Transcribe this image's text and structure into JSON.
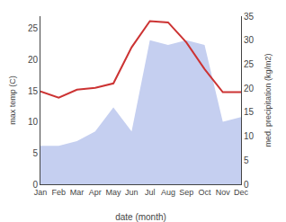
{
  "chart_data": {
    "type": "line",
    "categories": [
      "Jan",
      "Feb",
      "Mar",
      "Apr",
      "May",
      "Jun",
      "Jul",
      "Aug",
      "Sep",
      "Oct",
      "Nov",
      "Dec"
    ],
    "xlabel": "date (month)",
    "ylabel": "max temp (C)",
    "y2label": "med. precipitation (kg/m2)",
    "series": [
      {
        "type": "area",
        "axis": "y2",
        "color": "#c5cff0",
        "values": [
          8,
          8,
          9,
          11,
          16,
          11,
          30,
          29,
          30,
          29,
          13,
          14
        ]
      },
      {
        "type": "line",
        "color": "#cc3333",
        "values": [
          14.9,
          13.9,
          15.2,
          15.5,
          16.2,
          22.0,
          26.2,
          26.0,
          22.8,
          18.5,
          14.8,
          14.8
        ]
      }
    ],
    "ylim": [
      0,
      27
    ],
    "yticks": [
      0,
      5,
      10,
      15,
      20,
      25
    ],
    "y2lim": [
      0,
      35
    ],
    "y2ticks": [
      0,
      5,
      10,
      15,
      20,
      25,
      30,
      35
    ],
    "grid": false
  }
}
